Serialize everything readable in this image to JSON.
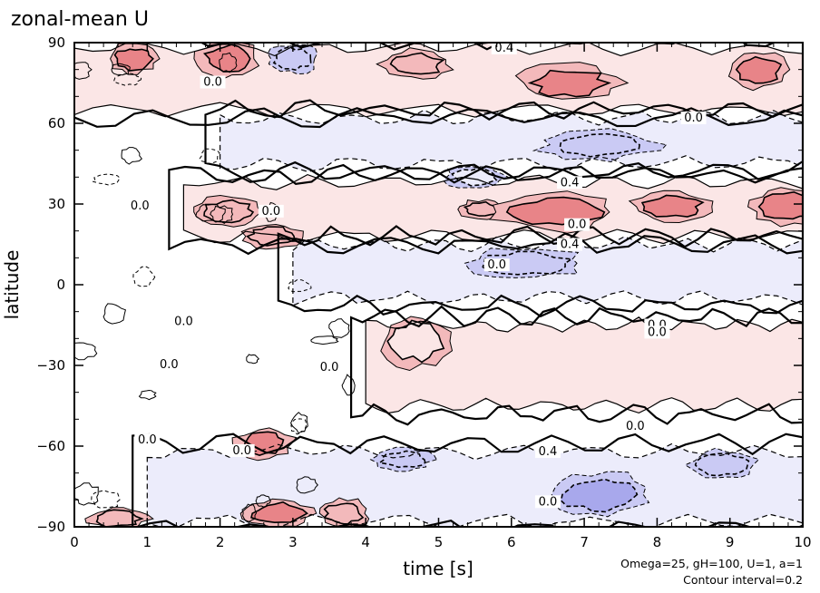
{
  "chart_data": {
    "type": "heatmap",
    "title": "zonal-mean U",
    "xlabel": "time [s]",
    "ylabel": "latitude",
    "xlim": [
      0,
      10
    ],
    "ylim": [
      -90,
      90
    ],
    "x_ticks": [
      0,
      1,
      2,
      3,
      4,
      5,
      6,
      7,
      8,
      9,
      10
    ],
    "x_tick_labels": [
      "0",
      "1",
      "2",
      "3",
      "4",
      "5",
      "6",
      "7",
      "8",
      "9",
      "10"
    ],
    "y_ticks": [
      90,
      60,
      30,
      0,
      -30,
      -60,
      -90
    ],
    "y_tick_labels": [
      "90",
      "60",
      "30",
      "0",
      "−30",
      "−60",
      "−90"
    ],
    "contour_interval": 0.2,
    "annotation_line1": "Omega=25, gH=100, U=1, a=1",
    "annotation_line2": "Contour interval=0.2",
    "colors": {
      "positive_light": "#fbe6e6",
      "positive_mid": "#f3b9bb",
      "positive_strong": "#e88488",
      "negative_light": "#ececfb",
      "negative_mid": "#cacaf4",
      "negative_strong": "#a8a8ec"
    },
    "bands": [
      {
        "lat": [
          65,
          88
        ],
        "x": [
          0,
          10
        ],
        "value": 0.3,
        "label": "0.4",
        "label_x": 5.9
      },
      {
        "lat": [
          45,
          62
        ],
        "x": [
          2,
          10
        ],
        "value": -0.2,
        "label": "0.0",
        "label_x": 8.5
      },
      {
        "lat": [
          18,
          38
        ],
        "x": [
          1.5,
          10
        ],
        "value": 0.3,
        "label": "0.4",
        "label_x": 6.8
      },
      {
        "lat": [
          -5,
          15
        ],
        "x": [
          3,
          10
        ],
        "value": -0.3,
        "label": "0.4",
        "label_x": 6.8
      },
      {
        "lat": [
          -45,
          -15
        ],
        "x": [
          4,
          10
        ],
        "value": 0.15,
        "label": "0.0",
        "label_x": 8.0
      },
      {
        "lat": [
          -88,
          -62
        ],
        "x": [
          1,
          10
        ],
        "value": -0.3,
        "label": "0.4",
        "label_x": 6.5
      }
    ],
    "blobs": [
      {
        "x": 2.1,
        "y": 84,
        "rx": 0.3,
        "ry": 5,
        "value": 0.7
      },
      {
        "x": 3.0,
        "y": 84,
        "rx": 0.25,
        "ry": 4,
        "value": -0.4
      },
      {
        "x": 0.8,
        "y": 84,
        "rx": 0.25,
        "ry": 4,
        "value": 0.6
      },
      {
        "x": 4.7,
        "y": 82,
        "rx": 0.35,
        "ry": 4,
        "value": 0.5
      },
      {
        "x": 6.8,
        "y": 75,
        "rx": 0.5,
        "ry": 5,
        "value": 0.6
      },
      {
        "x": 9.4,
        "y": 80,
        "rx": 0.3,
        "ry": 5,
        "value": 0.7
      },
      {
        "x": 7.2,
        "y": 52,
        "rx": 0.6,
        "ry": 4,
        "value": -0.5
      },
      {
        "x": 5.5,
        "y": 40,
        "rx": 0.3,
        "ry": 3,
        "value": -0.3
      },
      {
        "x": 2.1,
        "y": 27,
        "rx": 0.35,
        "ry": 4,
        "value": 0.5
      },
      {
        "x": 2.7,
        "y": 18,
        "rx": 0.3,
        "ry": 3.5,
        "value": 0.5
      },
      {
        "x": 5.6,
        "y": 28,
        "rx": 0.25,
        "ry": 2.5,
        "value": 0.5
      },
      {
        "x": 6.6,
        "y": 27,
        "rx": 0.6,
        "ry": 5,
        "value": 0.6
      },
      {
        "x": 8.2,
        "y": 29,
        "rx": 0.4,
        "ry": 4,
        "value": 0.6
      },
      {
        "x": 9.8,
        "y": 29,
        "rx": 0.4,
        "ry": 5,
        "value": 0.6
      },
      {
        "x": 6.2,
        "y": 8,
        "rx": 0.6,
        "ry": 4,
        "value": -0.5
      },
      {
        "x": 4.7,
        "y": -21,
        "rx": 0.35,
        "ry": 7,
        "value": 0.2
      },
      {
        "x": 2.6,
        "y": -59,
        "rx": 0.3,
        "ry": 4,
        "value": 0.6
      },
      {
        "x": 4.5,
        "y": -65,
        "rx": 0.3,
        "ry": 3,
        "value": -0.5
      },
      {
        "x": 7.2,
        "y": -78,
        "rx": 0.5,
        "ry": 6,
        "value": -0.6
      },
      {
        "x": 8.9,
        "y": -67,
        "rx": 0.35,
        "ry": 4,
        "value": -0.4
      },
      {
        "x": 2.8,
        "y": -85,
        "rx": 0.35,
        "ry": 4,
        "value": 0.6
      },
      {
        "x": 3.7,
        "y": -85,
        "rx": 0.25,
        "ry": 4,
        "value": 0.5
      },
      {
        "x": 0.6,
        "y": -87,
        "rx": 0.3,
        "ry": 3,
        "value": 0.5
      }
    ],
    "zero_labels": [
      {
        "x": 1.9,
        "y": 74,
        "text": "0.0"
      },
      {
        "x": 2.7,
        "y": 26,
        "text": "0.0"
      },
      {
        "x": 0.9,
        "y": 28,
        "text": "0.0"
      },
      {
        "x": 5.8,
        "y": 6,
        "text": "0.0"
      },
      {
        "x": 1.5,
        "y": -15,
        "text": "0.0"
      },
      {
        "x": 1.3,
        "y": -31,
        "text": "0.0"
      },
      {
        "x": 3.5,
        "y": -32,
        "text": "0.0"
      },
      {
        "x": 1.0,
        "y": -59,
        "text": "0.0"
      },
      {
        "x": 2.3,
        "y": -63,
        "text": "0.0"
      },
      {
        "x": 8.0,
        "y": -19,
        "text": "0.0"
      },
      {
        "x": 7.7,
        "y": -54,
        "text": "0.0"
      },
      {
        "x": 6.5,
        "y": -82,
        "text": "0.0"
      },
      {
        "x": 6.9,
        "y": 21,
        "text": "0.0"
      }
    ]
  }
}
